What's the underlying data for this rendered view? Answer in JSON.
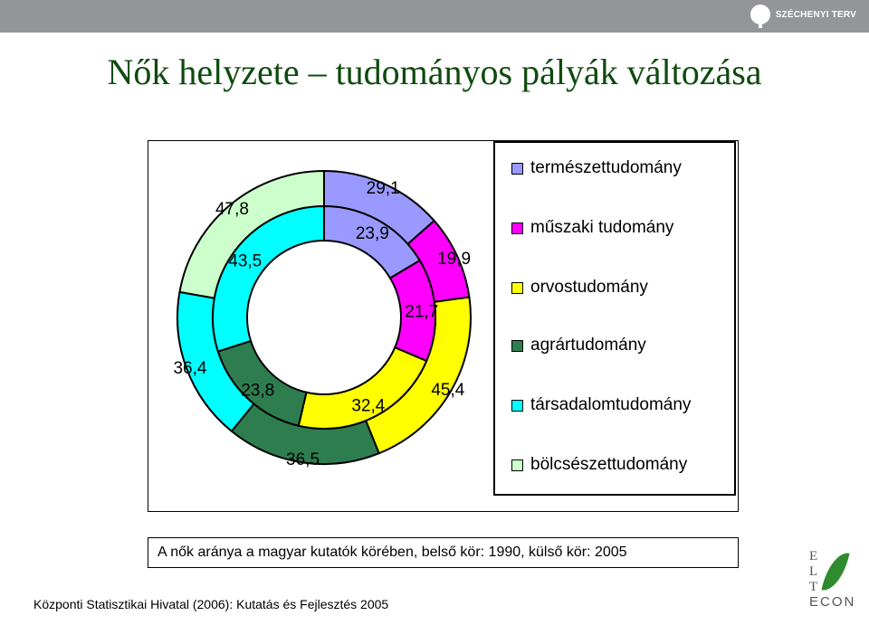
{
  "header": {
    "logo_text": "SZÉCHENYI TERV"
  },
  "title": "Nők helyzete – tudományos pályák változása",
  "chart_data": {
    "type": "donut",
    "inner_ring": {
      "values": [
        23.9,
        21.7,
        32.4,
        23.8,
        43.5,
        0
      ],
      "labels": [
        "23,9",
        "21,7",
        "32,4",
        "23,8",
        "43,5",
        ""
      ]
    },
    "outer_ring": {
      "values": [
        29.1,
        19.9,
        45.4,
        36.5,
        36.4,
        47.8
      ],
      "labels": [
        "29,1",
        "19,9",
        "45,4",
        "36,5",
        "36,4",
        "47,8"
      ]
    },
    "categories": [
      "természettudomány",
      "műszaki tudomány",
      "orvostudomány",
      "agrártudomány",
      "társadalomtudomány",
      "bölcsészettudomány"
    ],
    "colors": [
      "#9999ff",
      "#ff00ff",
      "#ffff00",
      "#2e7d4f",
      "#00ffff",
      "#ccffcc"
    ],
    "legend_position": "right"
  },
  "caption": "A nők aránya a magyar kutatók körében, belső kör: 1990, külső kör: 2005",
  "source": "Központi Statisztikai Hivatal (2006): Kutatás és Fejlesztés 2005",
  "elte_logo": {
    "letters": [
      "E",
      "L",
      "T"
    ],
    "word": "ECON"
  }
}
